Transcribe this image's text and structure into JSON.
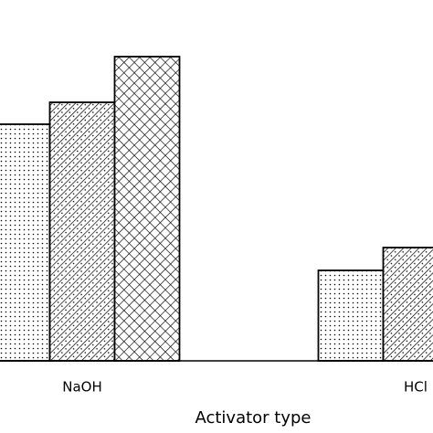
{
  "chart_data": {
    "type": "bar",
    "x_label": "Activator type",
    "categories": [
      "NaOH",
      "HCl"
    ],
    "series": [
      {
        "values": [
          259,
          99
        ]
      },
      {
        "values": [
          283,
          124
        ]
      },
      {
        "values": [
          333,
          null
        ]
      }
    ],
    "ylim": [
      0,
      395
    ]
  }
}
